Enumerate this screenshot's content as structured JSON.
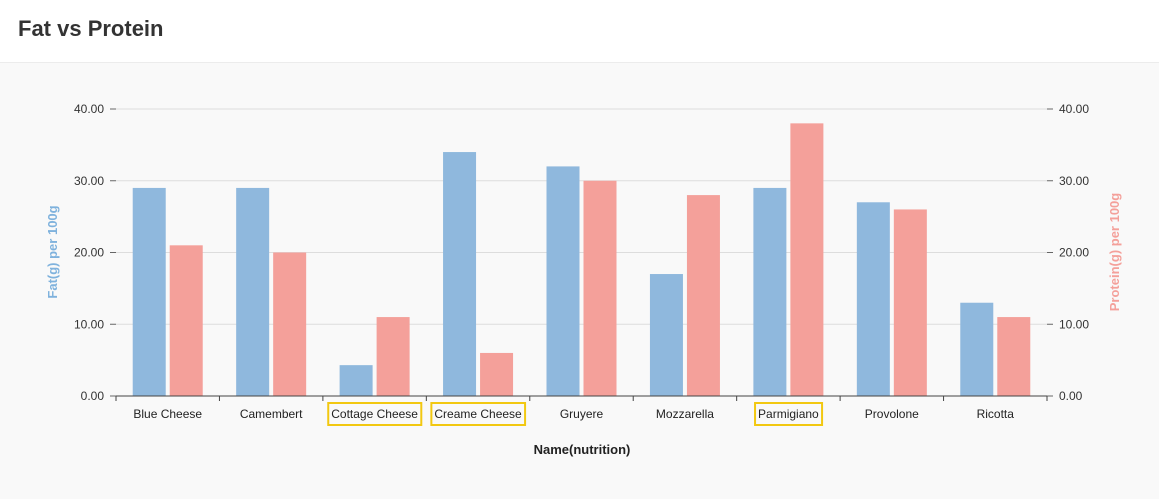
{
  "page": {
    "title": "Fat vs Protein"
  },
  "colors": {
    "fat": "#8fb8dd",
    "protein": "#f4a09a",
    "highlight": "#f2c811",
    "fat_axis_label": "#7fb2dd",
    "protein_axis_label": "#f4a09a",
    "grid": "#dddddd"
  },
  "chart_data": {
    "type": "bar",
    "title": "Fat vs Protein",
    "xlabel": "Name(nutrition)",
    "ylabel_left": "Fat(g) per 100g",
    "ylabel_right": "Protein(g) per 100g",
    "ylim": [
      0,
      40
    ],
    "yticks": [
      "0.00",
      "10.00",
      "20.00",
      "30.00",
      "40.00"
    ],
    "grid": true,
    "categories": [
      "Blue Cheese",
      "Camembert",
      "Cottage Cheese",
      "Creame Cheese",
      "Gruyere",
      "Mozzarella",
      "Parmigiano",
      "Provolone",
      "Ricotta"
    ],
    "highlighted_categories": [
      "Cottage Cheese",
      "Creame Cheese",
      "Parmigiano"
    ],
    "series": [
      {
        "values": [
          29,
          29,
          4.3,
          34,
          32,
          17,
          29,
          27,
          13
        ],
        "axis": "left"
      },
      {
        "values": [
          21,
          20,
          11,
          6,
          30,
          28,
          38,
          26,
          11
        ],
        "axis": "right"
      }
    ]
  }
}
